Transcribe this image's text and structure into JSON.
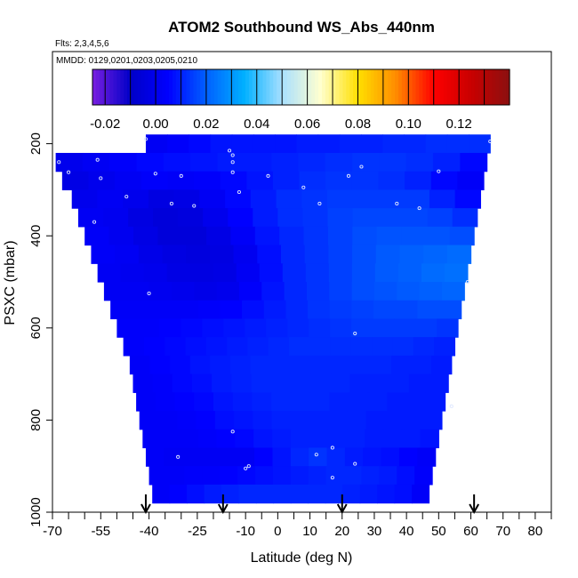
{
  "chart_data": {
    "type": "heatmap",
    "title": "ATOM2 Southbound WS_Abs_440nm",
    "flights_note": "Flts: 2,3,4,5,6",
    "dates_note": "MMDD: 0129,0201,0203,0205,0210",
    "xlabel": "Latitude (deg N)",
    "ylabel": "PSXC (mbar)",
    "xlim": [
      -70,
      85
    ],
    "ylim": [
      1000,
      0
    ],
    "x_ticks": [
      -70,
      -55,
      -40,
      -25,
      -10,
      0,
      10,
      20,
      30,
      40,
      50,
      60,
      70,
      80
    ],
    "x_tick_labels": [
      "-70",
      "-55",
      "-40",
      "-25",
      "-10",
      "0",
      "10",
      "20",
      "30",
      "40",
      "50",
      "60",
      "70",
      "80"
    ],
    "y_ticks": [
      200,
      400,
      600,
      800,
      1000
    ],
    "y_tick_labels": [
      "200",
      "400",
      "600",
      "800",
      "1000"
    ],
    "colorbar": {
      "min": -0.025,
      "max": 0.14,
      "ticks": [
        -0.02,
        0.0,
        0.02,
        0.04,
        0.06,
        0.08,
        0.1,
        0.12
      ],
      "tick_labels": [
        "-0.02",
        "0.00",
        "0.02",
        "0.04",
        "0.06",
        "0.08",
        "0.10",
        "0.12"
      ],
      "colors": [
        "#7a1fe0",
        "#0000c8",
        "#0000ff",
        "#0060ff",
        "#00b0ff",
        "#a8e0ff",
        "#ffffd0",
        "#ffe000",
        "#ff8c00",
        "#ff0000",
        "#c80000",
        "#8b1010"
      ]
    },
    "rows": [
      {
        "p": 200,
        "lat_min": -41,
        "lat_max": 66,
        "values": [
          0.002,
          0.004,
          0.006,
          0.008,
          0.008,
          0.008,
          0.008,
          0.009,
          0.009,
          0.01,
          0.01,
          0.011,
          0.011,
          0.012,
          0.012,
          0.012
        ]
      },
      {
        "p": 240,
        "lat_min": -69,
        "lat_max": 65,
        "values": [
          0.0,
          0.002,
          0.004,
          0.006,
          0.007,
          0.008,
          0.009,
          0.009,
          0.01,
          0.011,
          0.012,
          0.013,
          0.013,
          0.012,
          0.01,
          0.006
        ]
      },
      {
        "p": 280,
        "lat_min": -67,
        "lat_max": 64,
        "values": [
          -0.002,
          0.0,
          0.002,
          0.004,
          0.003,
          0.004,
          0.006,
          0.008,
          0.01,
          0.012,
          0.013,
          0.013,
          0.012,
          0.01,
          0.006,
          0.003
        ]
      },
      {
        "p": 320,
        "lat_min": -64,
        "lat_max": 63,
        "values": [
          0.0,
          0.002,
          0.0,
          -0.003,
          -0.002,
          0.002,
          0.006,
          0.009,
          0.012,
          0.013,
          0.014,
          0.014,
          0.014,
          0.014,
          0.01,
          0.006
        ]
      },
      {
        "p": 360,
        "lat_min": -62,
        "lat_max": 62,
        "values": [
          0.002,
          0.001,
          -0.003,
          -0.005,
          -0.004,
          0.0,
          0.005,
          0.009,
          0.012,
          0.013,
          0.015,
          0.016,
          0.016,
          0.016,
          0.015,
          0.012
        ]
      },
      {
        "p": 400,
        "lat_min": -60,
        "lat_max": 61,
        "values": [
          0.003,
          0.001,
          -0.002,
          -0.005,
          -0.005,
          -0.002,
          0.003,
          0.008,
          0.011,
          0.013,
          0.015,
          0.017,
          0.018,
          0.018,
          0.018,
          0.017
        ]
      },
      {
        "p": 440,
        "lat_min": -58,
        "lat_max": 60,
        "values": [
          0.003,
          0.002,
          -0.001,
          -0.003,
          -0.004,
          -0.003,
          0.001,
          0.007,
          0.011,
          0.013,
          0.015,
          0.017,
          0.019,
          0.02,
          0.021,
          0.022
        ]
      },
      {
        "p": 480,
        "lat_min": -56,
        "lat_max": 59,
        "values": [
          0.002,
          0.001,
          0.0,
          -0.002,
          -0.003,
          -0.002,
          0.002,
          0.007,
          0.011,
          0.013,
          0.015,
          0.017,
          0.019,
          0.02,
          0.022,
          0.023
        ]
      },
      {
        "p": 520,
        "lat_min": -54,
        "lat_max": 58,
        "values": [
          0.002,
          0.002,
          0.001,
          0.0,
          -0.001,
          0.0,
          0.004,
          0.008,
          0.011,
          0.013,
          0.015,
          0.017,
          0.018,
          0.019,
          0.02,
          0.021
        ]
      },
      {
        "p": 560,
        "lat_min": -52,
        "lat_max": 57,
        "values": [
          0.003,
          0.003,
          0.003,
          0.003,
          0.004,
          0.005,
          0.007,
          0.009,
          0.011,
          0.013,
          0.014,
          0.015,
          0.016,
          0.016,
          0.017,
          0.017
        ]
      },
      {
        "p": 600,
        "lat_min": -50,
        "lat_max": 56,
        "values": [
          0.004,
          0.004,
          0.005,
          0.006,
          0.007,
          0.008,
          0.009,
          0.01,
          0.011,
          0.012,
          0.013,
          0.014,
          0.014,
          0.014,
          0.014,
          0.013
        ]
      },
      {
        "p": 640,
        "lat_min": -48,
        "lat_max": 55,
        "values": [
          0.004,
          0.005,
          0.006,
          0.007,
          0.008,
          0.009,
          0.01,
          0.011,
          0.012,
          0.012,
          0.012,
          0.012,
          0.012,
          0.012,
          0.011,
          0.01
        ]
      },
      {
        "p": 680,
        "lat_min": -46,
        "lat_max": 54,
        "values": [
          0.003,
          0.005,
          0.006,
          0.008,
          0.009,
          0.01,
          0.011,
          0.011,
          0.011,
          0.011,
          0.011,
          0.011,
          0.011,
          0.01,
          0.01,
          0.009
        ]
      },
      {
        "p": 720,
        "lat_min": -45,
        "lat_max": 53,
        "values": [
          0.003,
          0.004,
          0.006,
          0.007,
          0.009,
          0.01,
          0.011,
          0.011,
          0.011,
          0.011,
          0.011,
          0.01,
          0.01,
          0.01,
          0.009,
          0.009
        ]
      },
      {
        "p": 760,
        "lat_min": -44,
        "lat_max": 52,
        "values": [
          0.003,
          0.004,
          0.005,
          0.006,
          0.008,
          0.009,
          0.01,
          0.011,
          0.011,
          0.011,
          0.01,
          0.01,
          0.01,
          0.009,
          0.009,
          0.009
        ]
      },
      {
        "p": 800,
        "lat_min": -43,
        "lat_max": 51,
        "values": [
          0.003,
          0.003,
          0.004,
          0.005,
          0.007,
          0.008,
          0.009,
          0.01,
          0.01,
          0.01,
          0.01,
          0.01,
          0.009,
          0.009,
          0.009,
          0.009
        ]
      },
      {
        "p": 840,
        "lat_min": -42,
        "lat_max": 50,
        "values": [
          0.003,
          0.003,
          0.003,
          0.004,
          0.005,
          0.006,
          0.008,
          0.009,
          0.01,
          0.01,
          0.01,
          0.01,
          0.009,
          0.009,
          0.009,
          0.008
        ]
      },
      {
        "p": 880,
        "lat_min": -41,
        "lat_max": 49,
        "values": [
          0.003,
          0.002,
          0.002,
          0.002,
          0.002,
          0.002,
          0.005,
          0.008,
          0.011,
          0.013,
          0.011,
          0.009,
          0.008,
          0.007,
          0.005,
          0.003
        ]
      },
      {
        "p": 920,
        "lat_min": -40,
        "lat_max": 48,
        "values": [
          0.003,
          0.003,
          0.004,
          0.004,
          0.005,
          0.006,
          0.007,
          0.008,
          0.009,
          0.01,
          0.011,
          0.011,
          0.01,
          0.009,
          0.007,
          0.004
        ]
      },
      {
        "p": 960,
        "lat_min": -39,
        "lat_max": 47,
        "values": [
          0.003,
          0.005,
          0.007,
          0.009,
          0.01,
          0.011,
          0.011,
          0.011,
          0.011,
          0.011,
          0.011,
          0.01,
          0.009,
          0.008,
          0.007,
          0.003
        ]
      }
    ],
    "samples": [
      [
        -41,
        190
      ],
      [
        -68,
        240
      ],
      [
        -56,
        235
      ],
      [
        -65,
        262
      ],
      [
        -55,
        275
      ],
      [
        -38,
        265
      ],
      [
        -30,
        270
      ],
      [
        -15,
        215
      ],
      [
        -14,
        225
      ],
      [
        -14,
        240
      ],
      [
        -14,
        262
      ],
      [
        -3,
        270
      ],
      [
        8,
        295
      ],
      [
        13,
        330
      ],
      [
        22,
        270
      ],
      [
        26,
        250
      ],
      [
        37,
        330
      ],
      [
        44,
        340
      ],
      [
        50,
        260
      ],
      [
        66,
        195
      ],
      [
        -47,
        315
      ],
      [
        -33,
        330
      ],
      [
        -57,
        370
      ],
      [
        -12,
        305
      ],
      [
        -26,
        335
      ],
      [
        -40,
        525
      ],
      [
        59,
        500
      ],
      [
        24,
        612
      ],
      [
        54,
        770
      ],
      [
        -14,
        825
      ],
      [
        -31,
        880
      ],
      [
        -10,
        905
      ],
      [
        -9,
        900
      ],
      [
        12,
        875
      ],
      [
        17,
        860
      ],
      [
        24,
        895
      ],
      [
        17,
        925
      ]
    ],
    "arrows": [
      -41,
      -17,
      20,
      61
    ]
  }
}
